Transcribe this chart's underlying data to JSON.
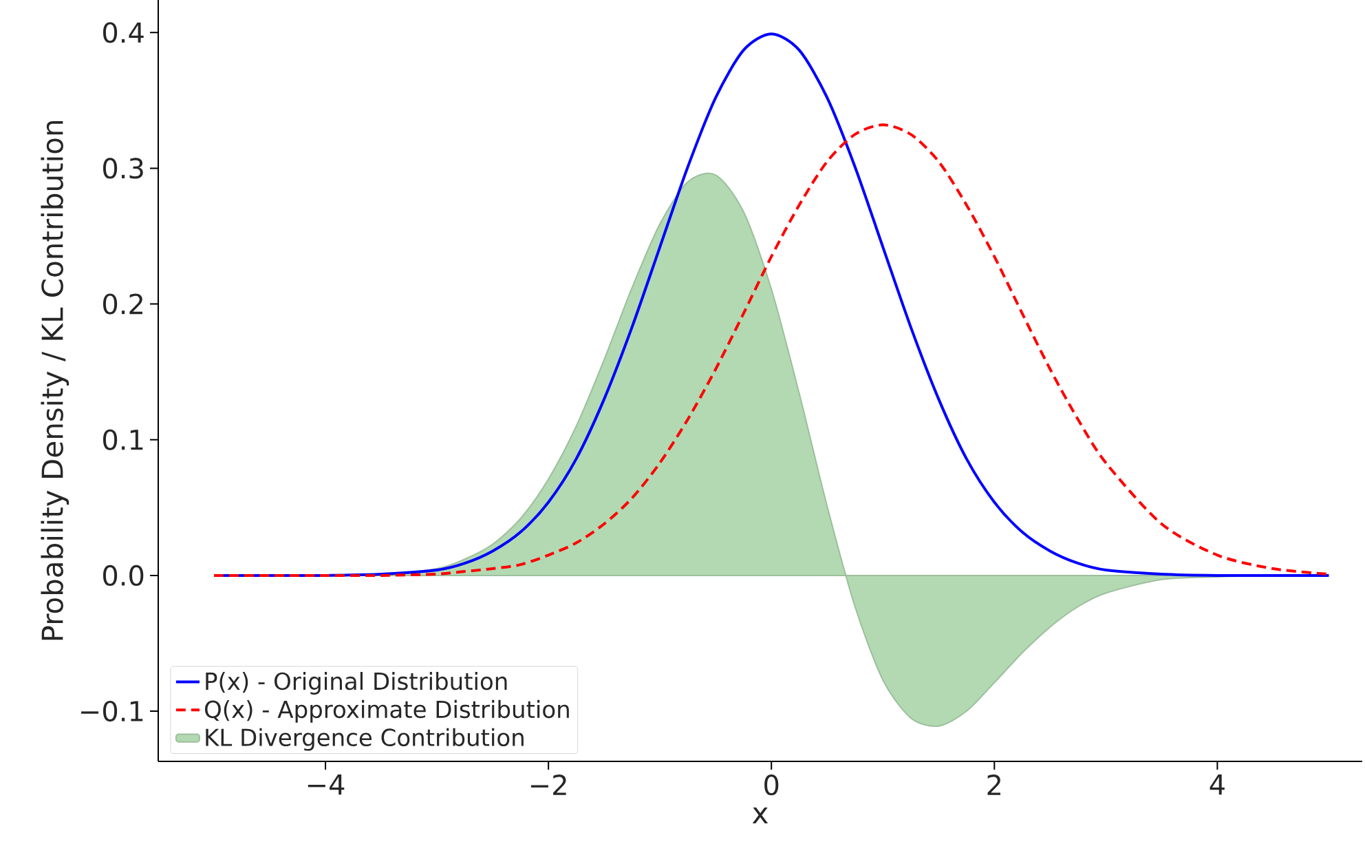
{
  "chart_data": {
    "type": "line",
    "xlabel": "x",
    "ylabel": "Probability Density / KL Contribution",
    "x": [
      -5,
      -4.5,
      -4,
      -3.5,
      -3,
      -2.75,
      -2.5,
      -2.25,
      -2,
      -1.75,
      -1.5,
      -1.25,
      -1,
      -0.75,
      -0.5,
      -0.25,
      0,
      0.25,
      0.5,
      0.75,
      1,
      1.25,
      1.5,
      1.75,
      2,
      2.25,
      2.5,
      2.75,
      3,
      3.5,
      4,
      4.5,
      5
    ],
    "series": [
      {
        "name": "P(x) - Original Distribution",
        "color": "#0000ff",
        "line_style": "solid",
        "values": [
          0.0,
          0.0,
          0.0,
          0.001,
          0.004,
          0.009,
          0.018,
          0.032,
          0.054,
          0.086,
          0.13,
          0.183,
          0.242,
          0.301,
          0.352,
          0.387,
          0.399,
          0.387,
          0.352,
          0.301,
          0.242,
          0.183,
          0.13,
          0.086,
          0.054,
          0.032,
          0.018,
          0.009,
          0.004,
          0.001,
          0.0,
          0.0,
          0.0
        ]
      },
      {
        "name": "Q(x) - Approximate Distribution",
        "color": "#ff0000",
        "line_style": "dashed",
        "values": [
          0.0,
          0.0,
          0.0,
          0.0,
          0.001,
          0.003,
          0.005,
          0.008,
          0.015,
          0.024,
          0.038,
          0.057,
          0.083,
          0.115,
          0.152,
          0.193,
          0.235,
          0.273,
          0.305,
          0.325,
          0.332,
          0.325,
          0.305,
          0.273,
          0.235,
          0.193,
          0.152,
          0.115,
          0.083,
          0.038,
          0.015,
          0.005,
          0.001
        ]
      },
      {
        "name": "KL Divergence Contribution",
        "type": "area",
        "color": "#b2d9b2",
        "values": [
          0.0,
          0.0,
          0.0,
          0.001,
          0.005,
          0.012,
          0.023,
          0.042,
          0.071,
          0.11,
          0.159,
          0.212,
          0.259,
          0.29,
          0.295,
          0.268,
          0.211,
          0.134,
          0.051,
          -0.023,
          -0.077,
          -0.105,
          -0.111,
          -0.1,
          -0.079,
          -0.057,
          -0.038,
          -0.023,
          -0.013,
          -0.003,
          -0.001,
          0.0,
          0.0
        ]
      }
    ],
    "xlim": [
      -5.5,
      5.3
    ],
    "ylim": [
      -0.137,
      0.424
    ],
    "xticks": [
      {
        "value": -4,
        "label": "−4"
      },
      {
        "value": -2,
        "label": "−2"
      },
      0,
      2,
      4
    ],
    "yticks": [
      {
        "value": -0.1,
        "label": "−0.1"
      },
      {
        "value": 0,
        "label": "0.0"
      },
      {
        "value": 0.1,
        "label": "0.1"
      },
      {
        "value": 0.2,
        "label": "0.2"
      },
      {
        "value": 0.3,
        "label": "0.3"
      },
      {
        "value": 0.4,
        "label": "0.4"
      }
    ],
    "legend": "bottom left"
  }
}
